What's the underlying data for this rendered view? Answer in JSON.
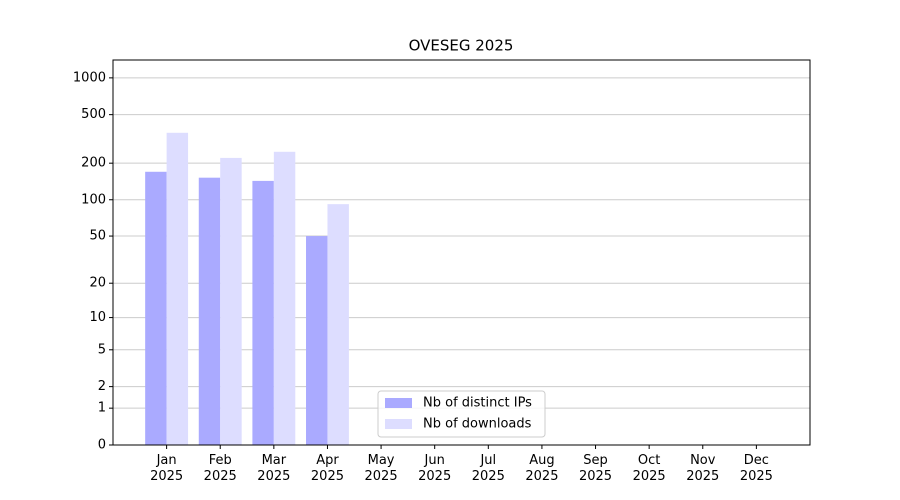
{
  "chart_data": {
    "type": "bar",
    "title": "OVESEG 2025",
    "categories": [
      "Jan\n2025",
      "Feb\n2025",
      "Mar\n2025",
      "Apr\n2025",
      "May\n2025",
      "Jun\n2025",
      "Jul\n2025",
      "Aug\n2025",
      "Sep\n2025",
      "Oct\n2025",
      "Nov\n2025",
      "Dec\n2025"
    ],
    "series": [
      {
        "name": "Nb of distinct IPs",
        "color": "#aaaaff",
        "values": [
          170,
          152,
          143,
          50,
          null,
          null,
          null,
          null,
          null,
          null,
          null,
          null
        ]
      },
      {
        "name": "Nb of downloads",
        "color": "#ddddff",
        "values": [
          355,
          221,
          248,
          92,
          null,
          null,
          null,
          null,
          null,
          null,
          null,
          null
        ]
      }
    ],
    "yscale": "log1p",
    "ylim": [
      0,
      1400
    ],
    "yticks": [
      0,
      1,
      2,
      5,
      10,
      20,
      50,
      100,
      200,
      500,
      1000
    ],
    "grid": true,
    "legend": "lower center"
  }
}
